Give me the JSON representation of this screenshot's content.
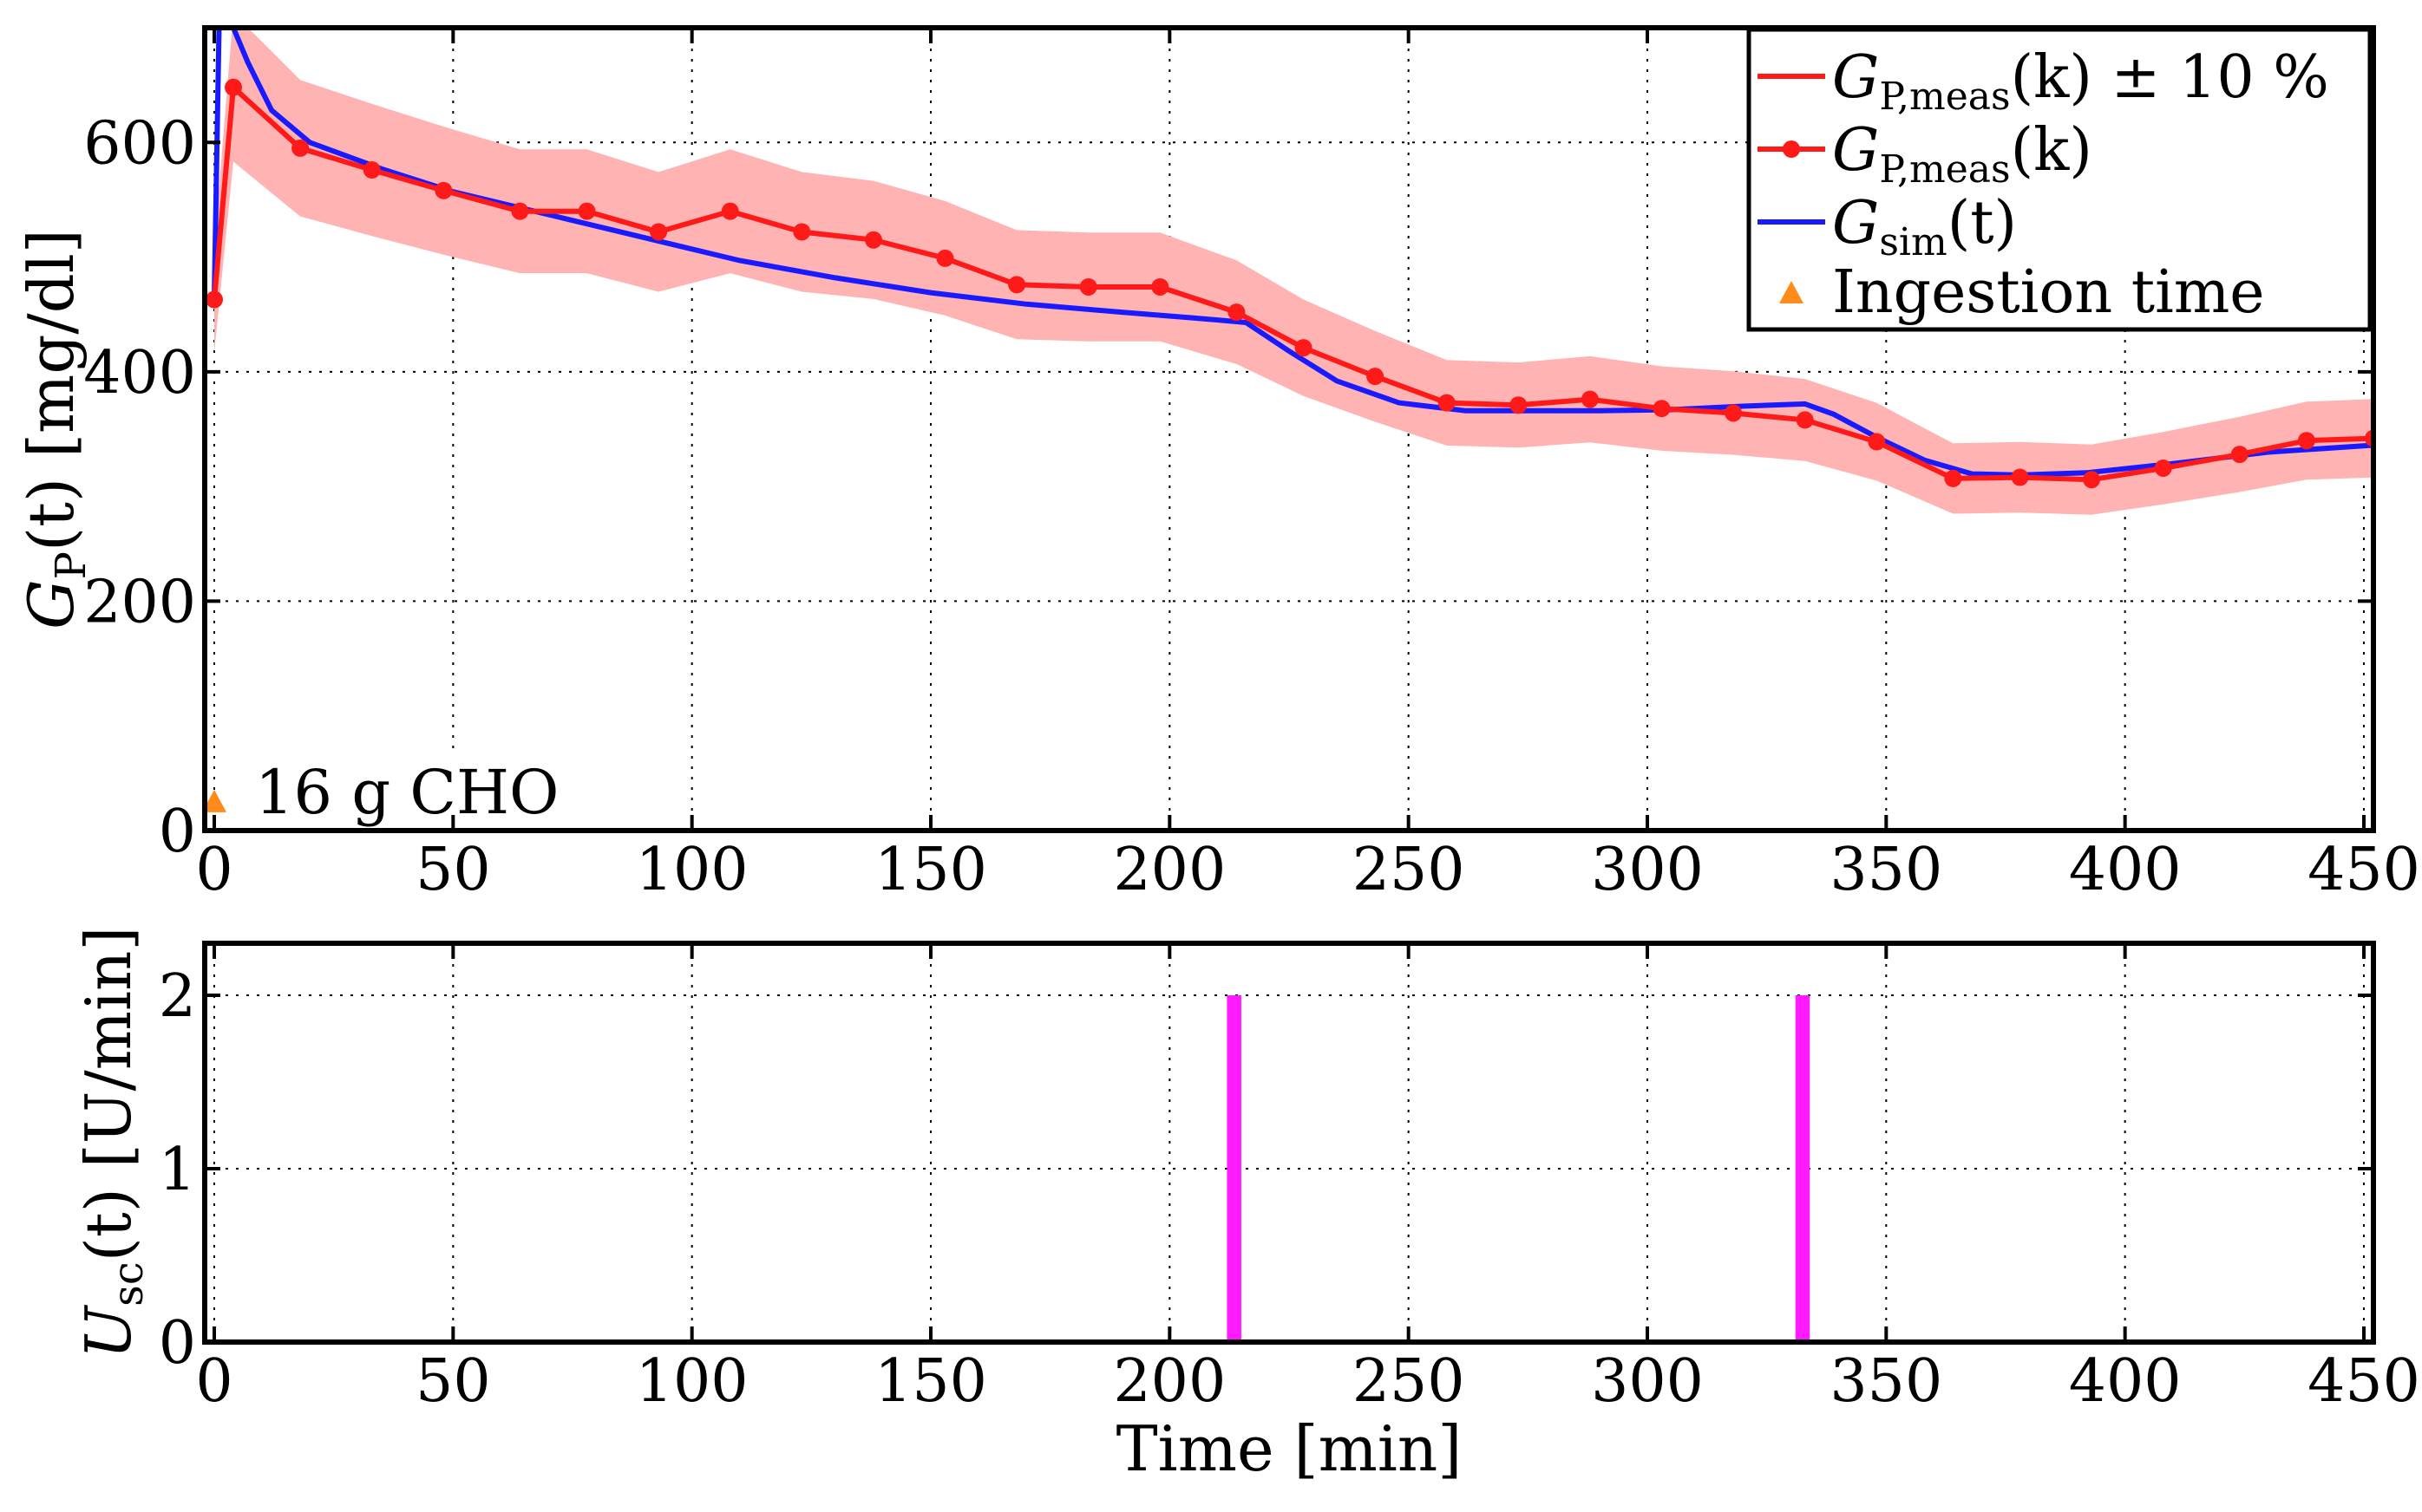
{
  "chart_data": [
    {
      "type": "line",
      "panel": "top",
      "ylabel": "G_P(t) [mg/dl]",
      "xlim": [
        -2,
        452
      ],
      "ylim": [
        0,
        700
      ],
      "xticks": [
        "0",
        "50",
        "100",
        "150",
        "200",
        "250",
        "300",
        "350",
        "400",
        "450"
      ],
      "yticks": [
        "0",
        "200",
        "400",
        "600"
      ],
      "xtick_values": [
        0,
        50,
        100,
        150,
        200,
        250,
        300,
        350,
        400,
        450
      ],
      "ytick_values": [
        0,
        200,
        400,
        600
      ],
      "grid": true,
      "legend_position": "top-right",
      "legend": [
        {
          "id": "band",
          "label": "G_P,meas(k) ± 10 %"
        },
        {
          "id": "meas",
          "label": "G_P,meas(k)"
        },
        {
          "id": "sim",
          "label": "G_sim(t)"
        },
        {
          "id": "ingest",
          "label": "Ingestion time"
        }
      ],
      "colors": {
        "band": "#ffb3b3",
        "meas": "#ff1a1a",
        "sim": "#1a1aff",
        "ingest": "#ff8c1a"
      },
      "series": [
        {
          "name": "G_P,meas(k)",
          "x": [
            0,
            4,
            18,
            33,
            48,
            64,
            78,
            93,
            108,
            123,
            138,
            153,
            168,
            183,
            198,
            214,
            228,
            243,
            258,
            273,
            288,
            303,
            318,
            333,
            348,
            364,
            378,
            393,
            408,
            424,
            438,
            452
          ],
          "y": [
            463,
            648,
            595,
            576,
            558,
            540,
            540,
            522,
            540,
            522,
            515,
            499,
            476,
            474,
            474,
            452,
            421,
            396,
            373,
            371,
            376,
            368,
            364,
            358,
            339,
            307,
            308,
            306,
            316,
            328,
            340,
            342
          ]
        },
        {
          "name": "G_sim(t)",
          "x": [
            0,
            1,
            4,
            7,
            12,
            20,
            35,
            50,
            70,
            90,
            110,
            130,
            150,
            170,
            190,
            205,
            216,
            225,
            235,
            248,
            262,
            275,
            290,
            305,
            320,
            333,
            339,
            348,
            358,
            368,
            378,
            392,
            410,
            430,
            452
          ],
          "y": [
            465,
            700,
            700,
            670,
            628,
            600,
            577,
            557,
            537,
            517,
            497,
            482,
            469,
            459,
            452,
            447,
            443,
            418,
            392,
            373,
            366,
            366,
            366,
            367,
            370,
            372,
            363,
            343,
            323,
            311,
            310,
            312,
            320,
            330,
            336
          ]
        }
      ],
      "ingestion": {
        "x": 0,
        "y": 25,
        "annotation": "16 g CHO"
      }
    },
    {
      "type": "bar",
      "panel": "bottom",
      "ylabel": "U_sc(t) [U/min]",
      "xlabel": "Time [min]",
      "xlim": [
        -2,
        452
      ],
      "ylim": [
        0,
        2.3
      ],
      "xticks": [
        "0",
        "50",
        "100",
        "150",
        "200",
        "250",
        "300",
        "350",
        "400",
        "450"
      ],
      "yticks": [
        "0",
        "1",
        "2"
      ],
      "xtick_values": [
        0,
        50,
        100,
        150,
        200,
        250,
        300,
        350,
        400,
        450
      ],
      "ytick_values": [
        0,
        1,
        2
      ],
      "grid": true,
      "color": "#ff1aff",
      "bars": [
        {
          "x_start": 212,
          "x_end": 215,
          "value": 2
        },
        {
          "x_start": 331,
          "x_end": 334,
          "value": 2
        }
      ]
    }
  ],
  "labels": {
    "top_ylabel_base": "G",
    "top_ylabel_sub": "P",
    "top_ylabel_rest": "(t) [mg/dl]",
    "bottom_ylabel_base": "U",
    "bottom_ylabel_sub": "sc",
    "bottom_ylabel_rest": "(t) [U/min]",
    "xlabel": "Time [min]",
    "legend_base": "G",
    "legend_sub_meas": "P,meas",
    "legend_band_rest": "(k) ± 10 %",
    "legend_meas_rest": "(k)",
    "legend_sub_sim": "sim",
    "legend_sim_rest": "(t)",
    "legend_ingest": "Ingestion time",
    "ingestion_annotation": "16 g CHO"
  }
}
